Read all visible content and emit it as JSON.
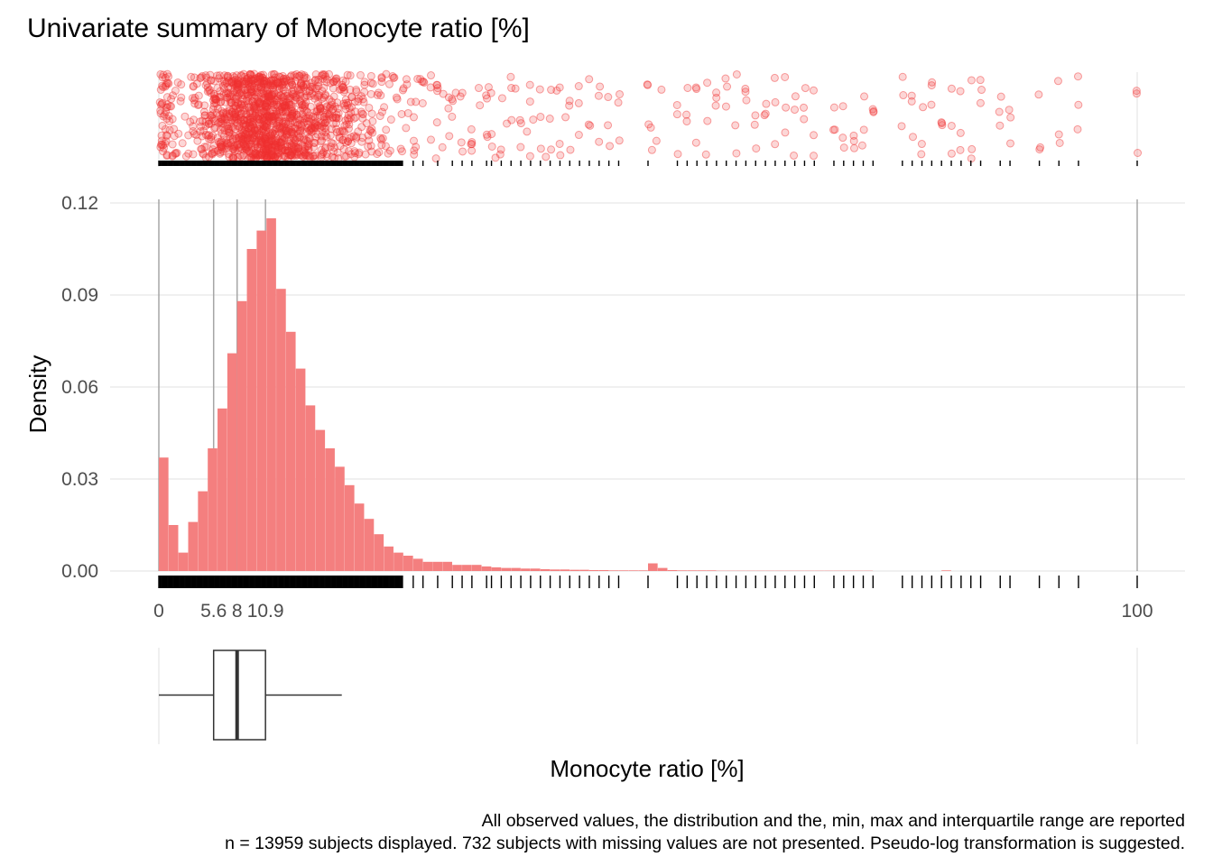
{
  "chart_data": {
    "type": "histogram",
    "title": "Univariate summary of Monocyte ratio [%]",
    "xlabel": "Monocyte ratio [%]",
    "ylabel": "Density",
    "xlim": [
      0,
      100
    ],
    "ylim": [
      0,
      0.12
    ],
    "y_ticks": [
      "0.00",
      "0.03",
      "0.06",
      "0.09",
      "0.12"
    ],
    "x_tick_labels": [
      {
        "value": 0,
        "label": "0"
      },
      {
        "value": 5.6,
        "label": "5.6"
      },
      {
        "value": 8,
        "label": "8"
      },
      {
        "value": 10.9,
        "label": "10.9"
      },
      {
        "value": 100,
        "label": "100"
      }
    ],
    "grid": true,
    "bin_width": 1,
    "bin_densities": [
      0.037,
      0.015,
      0.006,
      0.016,
      0.026,
      0.04,
      0.053,
      0.071,
      0.088,
      0.105,
      0.111,
      0.115,
      0.092,
      0.078,
      0.066,
      0.054,
      0.046,
      0.04,
      0.034,
      0.028,
      0.022,
      0.017,
      0.012,
      0.008,
      0.006,
      0.005,
      0.004,
      0.003,
      0.003,
      0.003,
      0.002,
      0.002,
      0.002,
      0.0015,
      0.0012,
      0.001,
      0.001,
      0.0008,
      0.0008,
      0.0006,
      0.0005,
      0.0005,
      0.0004,
      0.0004,
      0.0003,
      0.0003,
      0.0002,
      0.0002,
      0.0002,
      0.0002,
      0.0025,
      0.001,
      0.0003,
      0.0002,
      0.0002,
      0.0002,
      0.0002,
      0.0001,
      0.0001,
      0.0001,
      0.0001,
      0.0001,
      0.0001,
      0.0001,
      0.0001,
      0.0001,
      0.0001,
      0.0001,
      0.0001,
      0.0001,
      0.0001,
      0.0001,
      0.0001,
      0,
      0,
      0,
      0,
      0,
      0,
      0,
      0.0002,
      0,
      0,
      0,
      0,
      0,
      0,
      0,
      0,
      0,
      0,
      0,
      0,
      0,
      0,
      0,
      0,
      0,
      0,
      0
    ],
    "summary": {
      "min": 0,
      "q1": 5.6,
      "median": 8,
      "q3": 10.9,
      "max": 100,
      "whisker_upper": 18.7
    },
    "sparse_values": [
      26,
      27,
      28.5,
      30,
      31,
      32,
      33.5,
      34,
      35,
      36,
      37,
      38,
      39,
      40,
      41,
      42,
      43,
      44,
      45,
      46,
      47,
      50,
      53,
      54,
      55,
      56,
      57,
      58,
      59,
      60,
      61,
      62,
      63,
      64,
      65,
      66,
      67,
      69,
      70,
      71,
      72,
      73,
      76,
      77,
      78,
      79,
      80,
      81,
      82,
      83,
      84,
      86,
      87,
      90,
      92,
      94,
      100
    ],
    "colors": {
      "bars": "#f47f7f",
      "points": "#f03030",
      "reference_lines": "#a6a6a6",
      "rug": "#000000"
    },
    "caption": [
      "All observed values, the distribution and the, min, max and interquartile range are reported",
      "n = 13959 subjects displayed. 732 subjects with missing values are not presented. Pseudo-log transformation is suggested."
    ]
  }
}
